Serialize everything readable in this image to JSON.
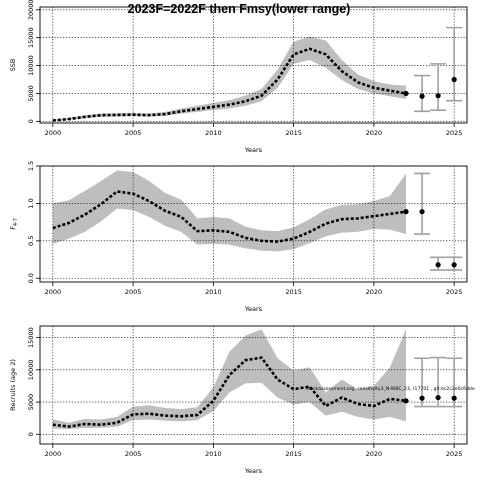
{
  "title": "2023F=2022F then Fmsy(lower range)",
  "colors": {
    "band": "#bebebe",
    "line": "#000000",
    "interval": "#a0a0a0",
    "grid": "#000000"
  },
  "chart_data": [
    {
      "type": "line",
      "xlabel": "Years",
      "ylabel": "SSB",
      "xlim": [
        1999.2,
        2025.8
      ],
      "ylim": [
        -300,
        20500
      ],
      "x_ticks": [
        "2000",
        "2005",
        "2010",
        "2015",
        "2020",
        "2025"
      ],
      "y_ticks": [
        "0",
        "5000",
        "10000",
        "15000",
        "20000"
      ],
      "grid": true,
      "series": [
        {
          "x": [
            2000,
            2001,
            2002,
            2003,
            2004,
            2005,
            2006,
            2007,
            2008,
            2009,
            2010,
            2011,
            2012,
            2013,
            2014,
            2015,
            2016,
            2017,
            2018,
            2019,
            2020,
            2021,
            2022
          ],
          "values": [
            150,
            400,
            800,
            1100,
            1150,
            1200,
            1100,
            1300,
            1800,
            2200,
            2600,
            3000,
            3600,
            4600,
            7500,
            12000,
            13000,
            12000,
            9000,
            7000,
            6000,
            5500,
            5000
          ],
          "lower": [
            50,
            250,
            550,
            800,
            850,
            900,
            850,
            1000,
            1400,
            1700,
            2000,
            2300,
            2800,
            3600,
            6000,
            10300,
            11000,
            9600,
            7400,
            5800,
            5000,
            4500,
            4000
          ],
          "upper": [
            300,
            650,
            1100,
            1400,
            1450,
            1500,
            1400,
            1700,
            2300,
            2800,
            3300,
            3800,
            4600,
            5800,
            9300,
            14300,
            15200,
            14500,
            11000,
            8400,
            7200,
            6600,
            6400
          ]
        }
      ],
      "forecast": {
        "x": [
          2023,
          2024,
          2025
        ],
        "values": [
          4500,
          4600,
          7500
        ],
        "lower": [
          1800,
          2000,
          3700
        ],
        "upper": [
          8200,
          10300,
          16800
        ]
      }
    },
    {
      "type": "line",
      "xlabel": "Years",
      "ylabel": "F",
      "ylabel_sub": "4-7",
      "xlim": [
        1999.2,
        2025.8
      ],
      "ylim": [
        -0.05,
        1.5
      ],
      "x_ticks": [
        "2000",
        "2005",
        "2010",
        "2015",
        "2020",
        "2025"
      ],
      "y_ticks": [
        "0.0",
        "0.5",
        "1.0",
        "1.5"
      ],
      "grid": true,
      "series": [
        {
          "x": [
            2000,
            2001,
            2002,
            2003,
            2004,
            2005,
            2006,
            2007,
            2008,
            2009,
            2010,
            2011,
            2012,
            2013,
            2014,
            2015,
            2016,
            2017,
            2018,
            2019,
            2020,
            2021,
            2022
          ],
          "values": [
            0.67,
            0.74,
            0.85,
            0.99,
            1.16,
            1.13,
            1.03,
            0.9,
            0.82,
            0.63,
            0.64,
            0.62,
            0.54,
            0.5,
            0.49,
            0.53,
            0.62,
            0.73,
            0.79,
            0.8,
            0.83,
            0.86,
            0.89
          ],
          "lower": [
            0.46,
            0.53,
            0.62,
            0.76,
            0.93,
            0.91,
            0.82,
            0.7,
            0.62,
            0.45,
            0.46,
            0.45,
            0.4,
            0.37,
            0.36,
            0.39,
            0.47,
            0.56,
            0.61,
            0.62,
            0.66,
            0.65,
            0.59
          ],
          "upper": [
            1.0,
            1.04,
            1.17,
            1.3,
            1.44,
            1.42,
            1.3,
            1.14,
            1.05,
            0.8,
            0.82,
            0.8,
            0.69,
            0.64,
            0.63,
            0.68,
            0.79,
            0.92,
            0.98,
            0.99,
            1.03,
            1.1,
            1.4
          ]
        }
      ],
      "forecast": {
        "x": [
          2023,
          2024,
          2025
        ],
        "values": [
          0.89,
          0.18,
          0.18
        ],
        "lower": [
          0.59,
          0.11,
          0.11
        ],
        "upper": [
          1.4,
          0.28,
          0.28
        ]
      }
    },
    {
      "type": "line",
      "xlabel": "Years",
      "ylabel": "Recruits (age 2)",
      "xlim": [
        1999.2,
        2025.8
      ],
      "ylim": [
        -1500,
        16800
      ],
      "x_ticks": [
        "2000",
        "2005",
        "2010",
        "2015",
        "2020",
        "2025"
      ],
      "y_ticks": [
        "0",
        "5000",
        "10000",
        "15000"
      ],
      "grid": true,
      "series": [
        {
          "x": [
            2000,
            2001,
            2002,
            2003,
            2004,
            2005,
            2006,
            2007,
            2008,
            2009,
            2010,
            2011,
            2012,
            2013,
            2014,
            2015,
            2016,
            2017,
            2018,
            2019,
            2020,
            2021,
            2022
          ],
          "values": [
            1500,
            1200,
            1600,
            1500,
            1800,
            3100,
            3200,
            2900,
            2800,
            3000,
            5200,
            9200,
            11500,
            11900,
            8500,
            7000,
            7400,
            4400,
            5700,
            4700,
            4400,
            5500,
            5200
          ],
          "lower": [
            900,
            800,
            1000,
            1000,
            1200,
            2200,
            2300,
            2100,
            2000,
            2200,
            3600,
            6500,
            7900,
            8000,
            5700,
            4600,
            5000,
            2900,
            3500,
            2700,
            2300,
            2700,
            2000
          ],
          "upper": [
            2300,
            1800,
            2400,
            2300,
            2700,
            4300,
            4500,
            4100,
            3900,
            4200,
            7300,
            12800,
            15300,
            16300,
            11800,
            9900,
            10400,
            6500,
            8500,
            7000,
            7500,
            10400,
            16300
          ]
        }
      ],
      "forecast": {
        "x": [
          2023,
          2024,
          2025
        ],
        "values": [
          5600,
          5700,
          5600
        ],
        "lower": [
          4300,
          4300,
          4300
        ],
        "upper": [
          11800,
          11900,
          11800
        ]
      },
      "annotation": "stockassessment.org, sensitivity3_N-WBC_23, r17701 , git:ec2c2e0c6dde"
    }
  ]
}
